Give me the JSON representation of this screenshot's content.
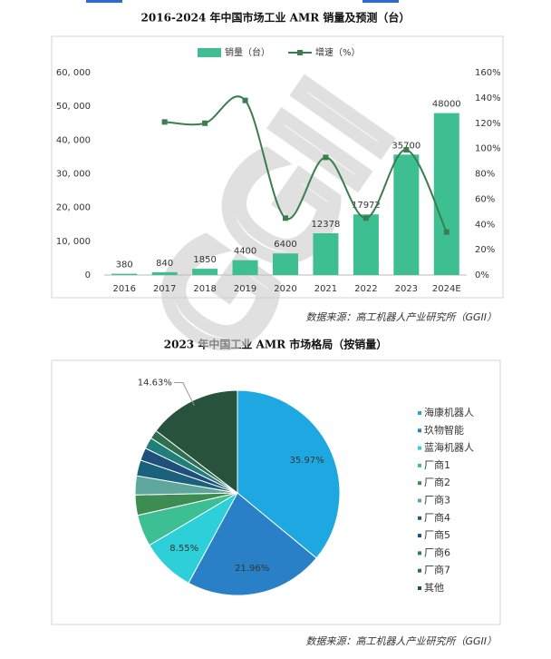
{
  "chart_data": [
    {
      "type": "bar",
      "title": "2016-2024 年中国市场工业 AMR 销量及预测（台）",
      "categories": [
        "2016",
        "2017",
        "2018",
        "2019",
        "2020",
        "2021",
        "2022",
        "2023",
        "2024E"
      ],
      "series": [
        {
          "name": "销量（台）",
          "color": "#3dbf91",
          "values": [
            380,
            840,
            1850,
            4400,
            6400,
            12378,
            17972,
            35700,
            48000
          ]
        },
        {
          "name": "增速（%）",
          "type": "line",
          "axis": "y2",
          "color": "#3a7d4e",
          "values": [
            null,
            121,
            120,
            138,
            45,
            93,
            45,
            99,
            34
          ]
        }
      ],
      "ylim": [
        0,
        60000
      ],
      "yticks": [
        0,
        {
          "value": 10000,
          "label": "10, 000"
        },
        {
          "value": 20000,
          "label": "20, 000"
        },
        {
          "value": 30000,
          "label": "30, 000"
        },
        {
          "value": 40000,
          "label": "40, 000"
        },
        {
          "value": 50000,
          "label": "50, 000"
        },
        {
          "value": 60000,
          "label": "60, 000"
        }
      ],
      "y2lim": [
        0,
        160
      ],
      "y2ticks": [
        {
          "value": 0,
          "label": "0%"
        },
        {
          "value": 20,
          "label": "20%"
        },
        {
          "value": 40,
          "label": "40%"
        },
        {
          "value": 60,
          "label": "60%"
        },
        {
          "value": 80,
          "label": "80%"
        },
        {
          "value": 100,
          "label": "100%"
        },
        {
          "value": 120,
          "label": "120%"
        },
        {
          "value": 140,
          "label": "140%"
        },
        {
          "value": 160,
          "label": "160%"
        }
      ],
      "watermark": "GGII",
      "source": "数据来源：高工机器人产业研究所（GGII）"
    },
    {
      "type": "pie",
      "title": "2023 年中国工业 AMR 市场格局（按销量）",
      "categories": [
        "海康机器人",
        "玖物智能",
        "蓝海机器人",
        "厂商1",
        "厂商2",
        "厂商3",
        "厂商4",
        "厂商5",
        "厂商6",
        "厂商7",
        "其他"
      ],
      "values": [
        35.97,
        21.96,
        8.55,
        5.0,
        3.2,
        3.0,
        2.5,
        2.0,
        1.8,
        1.39,
        14.63
      ],
      "value_labels": [
        "35.97%",
        "21.96%",
        "8.55%",
        null,
        null,
        null,
        null,
        null,
        null,
        null,
        "14.63%"
      ],
      "colors": [
        "#1ea8e2",
        "#2a80c6",
        "#2dcfd8",
        "#3cbf93",
        "#3d8c52",
        "#5fa79c",
        "#1a617c",
        "#1f507c",
        "#207e7b",
        "#2f6f4f",
        "#27523b"
      ],
      "source": "数据来源：高工机器人产业研究所（GGII）"
    }
  ]
}
